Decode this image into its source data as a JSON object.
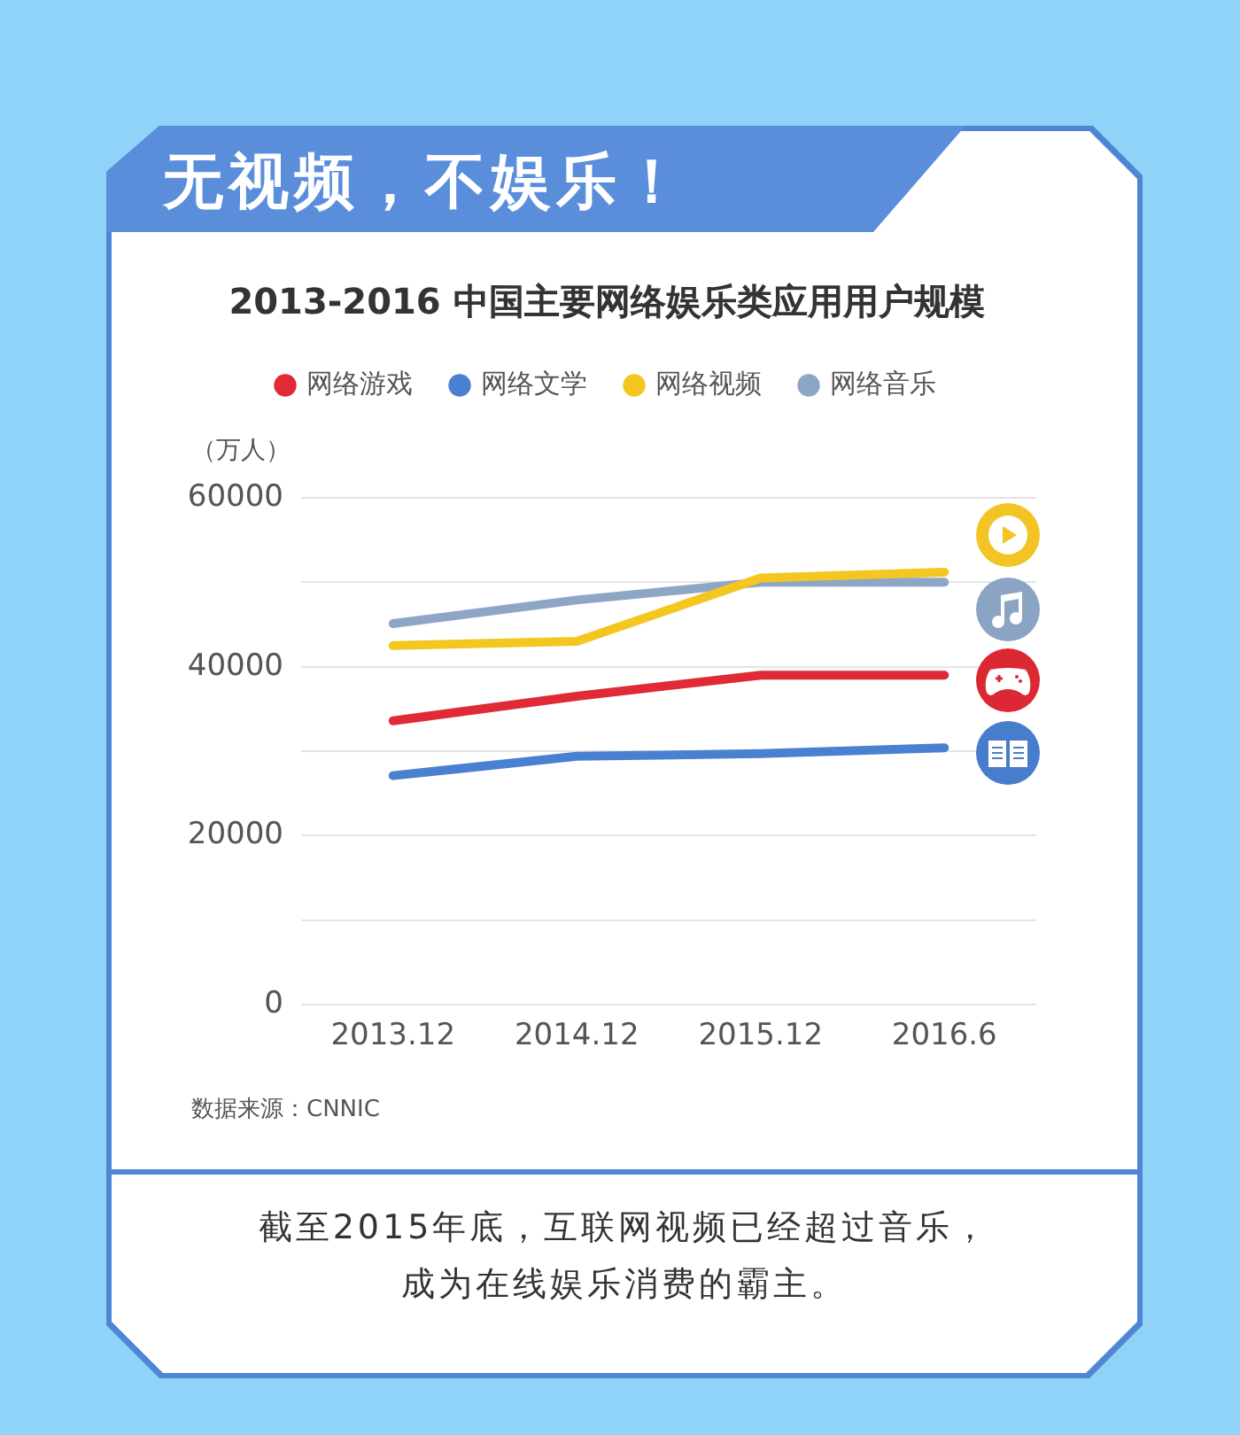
{
  "chart_data": {
    "type": "line",
    "title": "无视频，不娱乐！",
    "subtitle": "2013-2016 中国主要网络娱乐类应用用户规模",
    "ylabel": "（万人）",
    "categories": [
      "2013.12",
      "2014.12",
      "2015.12",
      "2016.6"
    ],
    "series": [
      {
        "name": "网络游戏",
        "color": "#e02a35",
        "values": [
          33600,
          36500,
          39000,
          39000
        ]
      },
      {
        "name": "网络文学",
        "color": "#4a80d0",
        "values": [
          27100,
          29400,
          29700,
          30400
        ]
      },
      {
        "name": "网络视频",
        "color": "#f4c620",
        "values": [
          42500,
          43000,
          50500,
          51200
        ]
      },
      {
        "name": "网络音乐",
        "color": "#8ea6c6",
        "values": [
          45100,
          47900,
          50000,
          50000
        ]
      }
    ],
    "ylim": [
      0,
      60000
    ],
    "yticks": [
      0,
      {
        "value": 10000,
        "label": null
      },
      20000,
      {
        "value": 30000,
        "label": null
      },
      40000,
      {
        "value": 50000,
        "label": null
      },
      60000
    ],
    "grid": "y",
    "legend": "top",
    "marker": "none",
    "line_style": "solid",
    "annotations": [
      "数据来源：CNNIC",
      "截至2015年底，互联网视频已经超过音乐，",
      "成为在线娱乐消费的霸主。"
    ]
  }
}
